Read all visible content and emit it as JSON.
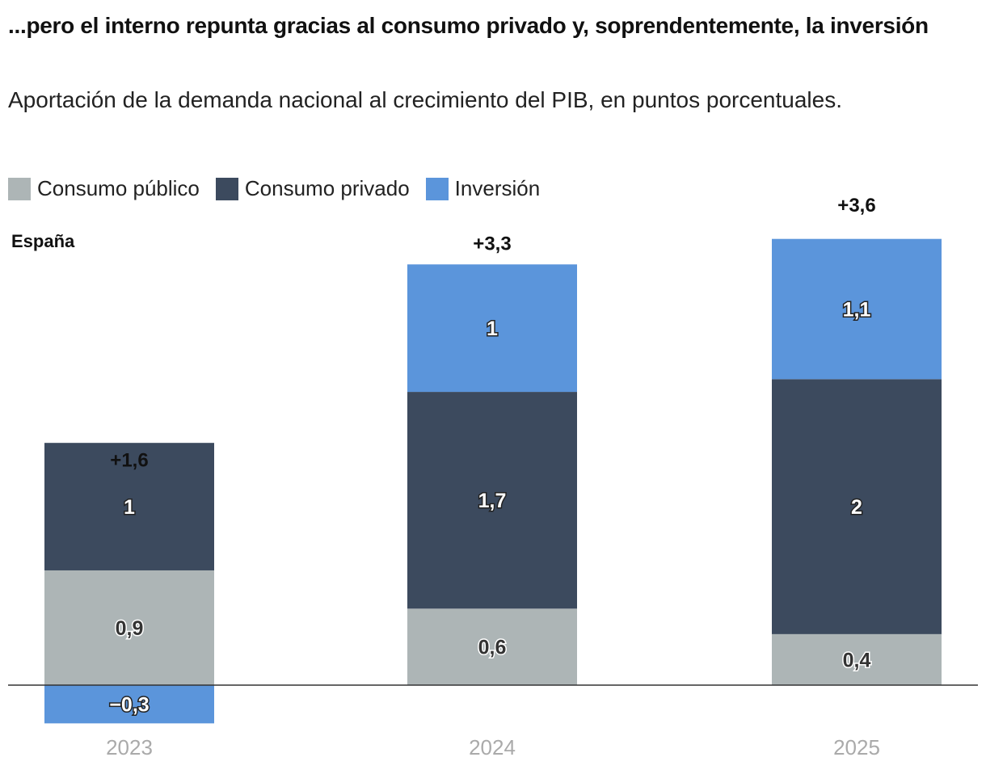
{
  "title": "...pero el interno repunta gracias al consumo privado y, soprendentemente, la inversión",
  "subtitle": "Aportación de la demanda nacional al crecimiento del PIB, en puntos porcentuales.",
  "country_label": "España",
  "chart_data": {
    "type": "bar",
    "stacked": true,
    "categories": [
      "2023",
      "2024",
      "2025"
    ],
    "series": [
      {
        "name": "Consumo público",
        "color": "#adb5b6",
        "values": [
          0.9,
          0.6,
          0.4
        ],
        "labels": [
          "0,9",
          "0,6",
          "0,4"
        ]
      },
      {
        "name": "Consumo privado",
        "color": "#3c4a5e",
        "values": [
          1,
          1.7,
          2
        ],
        "labels": [
          "1",
          "1,7",
          "2"
        ]
      },
      {
        "name": "Inversión",
        "color": "#5b95db",
        "values": [
          -0.3,
          1,
          1.1
        ],
        "labels": [
          "−0,3",
          "1",
          "1,1"
        ]
      }
    ],
    "totals": [
      "+1,6",
      "+3,3",
      "+3,6"
    ],
    "total_values": [
      1.6,
      3.3,
      3.6
    ],
    "legend": "top-left",
    "grid": false
  }
}
